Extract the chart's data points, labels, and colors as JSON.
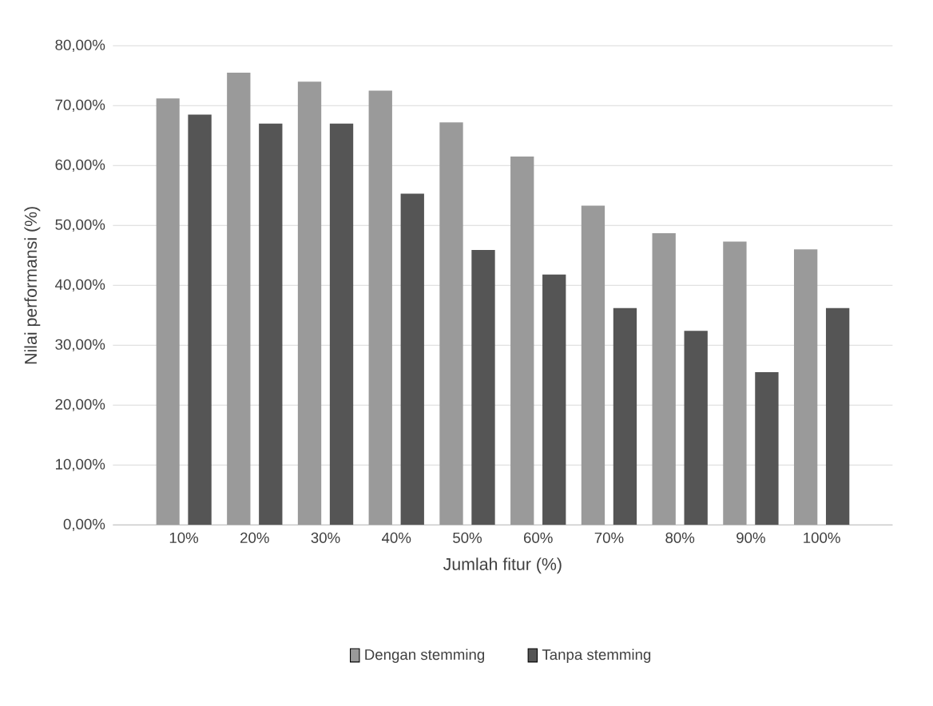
{
  "chart_data": {
    "type": "bar",
    "xlabel": "Jumlah fitur (%)",
    "ylabel": "Nilai performansi (%)",
    "categories": [
      "10%",
      "20%",
      "30%",
      "40%",
      "50%",
      "60%",
      "70%",
      "80%",
      "90%",
      "100%"
    ],
    "series": [
      {
        "name": "Dengan stemming",
        "color": "#9a9a9a",
        "values": [
          71.2,
          75.5,
          74,
          72.5,
          67.2,
          61.5,
          53.3,
          48.7,
          47.3,
          46
        ]
      },
      {
        "name": "Tanpa stemming",
        "color": "#555555",
        "values": [
          68.5,
          67,
          67,
          55.3,
          45.9,
          41.8,
          36.2,
          32.4,
          25.5,
          36.2
        ]
      }
    ],
    "ylim": [
      0,
      80
    ],
    "yticks": [
      {
        "value": 0,
        "label": "0,00%"
      },
      {
        "value": 10,
        "label": "10,00%"
      },
      {
        "value": 20,
        "label": "20,00%"
      },
      {
        "value": 30,
        "label": "30,00%"
      },
      {
        "value": 40,
        "label": "40,00%"
      },
      {
        "value": 50,
        "label": "50,00%"
      },
      {
        "value": 60,
        "label": "60,00%"
      },
      {
        "value": 70,
        "label": "70,00%"
      },
      {
        "value": 80,
        "label": "80,00%"
      }
    ],
    "grid": "y",
    "legend": "bottom"
  }
}
